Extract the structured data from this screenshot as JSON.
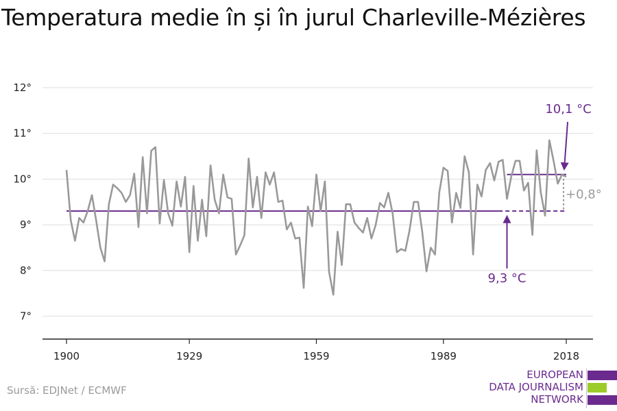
{
  "title": "Temperatura medie în și în jurul Charleville-Mézières",
  "source": "Sursă: EDJNet / ECMWF",
  "logo": {
    "line1": "EUROPEAN",
    "line2": "DATA JOURNALISM",
    "line3": "NETWORK",
    "colors": {
      "purple": "#6a2a8e",
      "green": "#9ccc2a"
    }
  },
  "colors": {
    "series": "#999999",
    "reference": "#6a2a8e",
    "grid": "#dddddd",
    "axis": "#222222",
    "diff": "#999999"
  },
  "chart_data": {
    "type": "line",
    "x_tick_labels": [
      "1900",
      "1929",
      "1959",
      "1989",
      "2018"
    ],
    "y_tick_labels": [
      "7°",
      "8°",
      "9°",
      "10°",
      "11°",
      "12°"
    ],
    "xlim": [
      1900,
      2018
    ],
    "ylim": [
      6.5,
      12.3
    ],
    "grid": true,
    "series": [
      {
        "x": [
          1900,
          1901,
          1902,
          1903,
          1904,
          1905,
          1906,
          1907,
          1908,
          1909,
          1910,
          1911,
          1912,
          1913,
          1914,
          1915,
          1916,
          1917,
          1918,
          1919,
          1920,
          1921,
          1922,
          1923,
          1924,
          1925,
          1926,
          1927,
          1928,
          1929,
          1930,
          1931,
          1932,
          1933,
          1934,
          1935,
          1936,
          1937,
          1938,
          1939,
          1940,
          1941,
          1942,
          1943,
          1944,
          1945,
          1946,
          1947,
          1948,
          1949,
          1950,
          1951,
          1952,
          1953,
          1954,
          1955,
          1956,
          1957,
          1958,
          1959,
          1960,
          1961,
          1962,
          1963,
          1964,
          1965,
          1966,
          1967,
          1968,
          1969,
          1970,
          1971,
          1972,
          1973,
          1974,
          1975,
          1976,
          1977,
          1978,
          1979,
          1980,
          1981,
          1982,
          1983,
          1984,
          1985,
          1986,
          1987,
          1988,
          1989,
          1990,
          1991,
          1992,
          1993,
          1994,
          1995,
          1996,
          1997,
          1998,
          1999,
          2000,
          2001,
          2002,
          2003,
          2004,
          2005,
          2006,
          2007,
          2008,
          2009,
          2010,
          2011,
          2012,
          2013,
          2014,
          2015,
          2016,
          2017,
          2018
        ],
        "values": [
          10.2,
          9.1,
          8.65,
          9.15,
          9.05,
          9.3,
          9.65,
          9.1,
          8.5,
          8.2,
          9.45,
          9.88,
          9.8,
          9.7,
          9.5,
          9.65,
          10.12,
          8.95,
          10.48,
          9.25,
          10.62,
          10.7,
          9.03,
          9.98,
          9.25,
          8.98,
          9.95,
          9.4,
          10.05,
          8.4,
          9.85,
          8.65,
          9.55,
          8.75,
          10.3,
          9.55,
          9.25,
          10.1,
          9.6,
          9.57,
          8.35,
          8.55,
          8.77,
          10.45,
          9.38,
          10.05,
          9.15,
          10.15,
          9.88,
          10.15,
          9.5,
          9.53,
          8.9,
          9.05,
          8.7,
          8.72,
          7.62,
          9.4,
          8.97,
          10.1,
          9.3,
          9.95,
          7.97,
          7.47,
          8.85,
          8.12,
          9.45,
          9.45,
          9.05,
          8.93,
          8.83,
          9.15,
          8.7,
          9.0,
          9.48,
          9.38,
          9.7,
          9.25,
          8.4,
          8.47,
          8.43,
          8.88,
          9.5,
          9.5,
          8.85,
          7.98,
          8.5,
          8.35,
          9.7,
          10.25,
          10.18,
          9.05,
          9.7,
          9.37,
          10.5,
          10.15,
          8.35,
          9.88,
          9.62,
          10.2,
          10.35,
          9.97,
          10.38,
          10.42,
          9.57,
          10.05,
          10.4,
          10.4,
          9.75,
          9.92,
          8.78,
          10.63,
          9.7,
          9.2,
          10.85,
          10.4,
          9.9,
          10.1,
          10.05
        ]
      }
    ],
    "reference_lines": [
      {
        "label": "9,3 °C",
        "value": 9.3,
        "x_from": 1900,
        "x_to": 2018
      },
      {
        "label": "10,1 °C",
        "value": 10.1,
        "x_from": 2004,
        "x_to": 2018
      }
    ],
    "difference_label": "+0,8°"
  }
}
